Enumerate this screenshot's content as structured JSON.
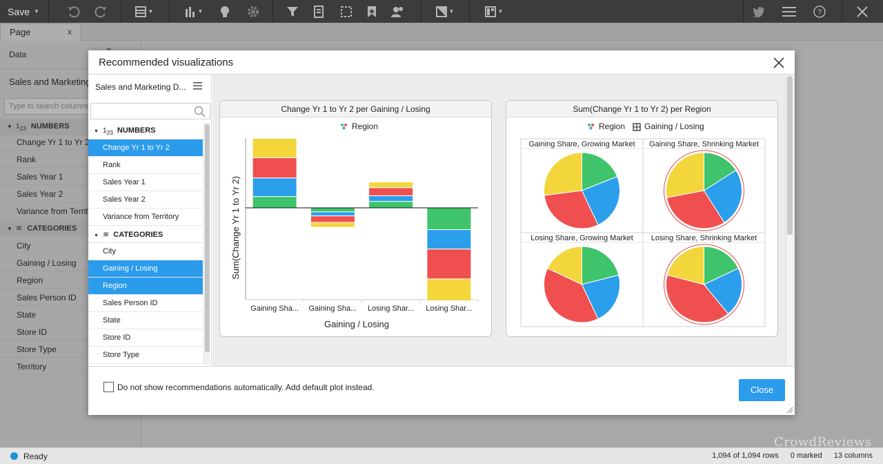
{
  "toolbar": {
    "save_label": "Save",
    "icons": [
      "undo-icon",
      "redo-icon",
      "table-icon",
      "bar-chart-icon",
      "bulb-icon",
      "gear-icon",
      "filter-icon",
      "data-table-icon",
      "marking-icon",
      "bookmark-icon",
      "collaboration-icon",
      "theme-icon",
      "layout-icon",
      "twitter-icon",
      "menu-icon",
      "help-icon",
      "close-icon"
    ]
  },
  "tabs": {
    "page_label": "Page",
    "close_label": "x"
  },
  "left_panel": {
    "data_label": "Data",
    "data_suffix": "T",
    "source_label": "Sales and Marketing D",
    "search_placeholder": "Type to search columns",
    "numbers_header": "NUMBERS",
    "numbers": [
      "Change Yr 1 to Yr 2",
      "Rank",
      "Sales Year 1",
      "Sales Year 2",
      "Variance from Territory"
    ],
    "categories_header": "CATEGORIES",
    "categories": [
      "City",
      "Gaining / Losing",
      "Region",
      "Sales Person ID",
      "State",
      "Store ID",
      "Store Type",
      "Territory"
    ]
  },
  "status": {
    "text": "Ready",
    "rows": "1,094 of 1,094 rows",
    "marked": "0 marked",
    "columns": "13 columns"
  },
  "watermark": "CrowdReviews",
  "dialog": {
    "title": "Recommended visualizations",
    "source_label": "Sales and Marketing D...",
    "numbers_header": "NUMBERS",
    "numbers": [
      {
        "label": "Change Yr 1 to Yr 2",
        "selected": true
      },
      {
        "label": "Rank",
        "selected": false
      },
      {
        "label": "Sales Year 1",
        "selected": false
      },
      {
        "label": "Sales Year 2",
        "selected": false
      },
      {
        "label": "Variance from Territory",
        "selected": false
      }
    ],
    "categories_header": "CATEGORIES",
    "categories": [
      {
        "label": "City",
        "selected": false
      },
      {
        "label": "Gaining / Losing",
        "selected": true
      },
      {
        "label": "Region",
        "selected": true
      },
      {
        "label": "Sales Person ID",
        "selected": false
      },
      {
        "label": "State",
        "selected": false
      },
      {
        "label": "Store ID",
        "selected": false
      },
      {
        "label": "Store Type",
        "selected": false
      }
    ],
    "checkbox_label": "Do not show recommendations automatically. Add default plot instead.",
    "close_button": "Close"
  },
  "colors": {
    "yellow": "#f3d53c",
    "red": "#ef4f4f",
    "blue": "#2b9eec",
    "green": "#3fc36b",
    "selection": "#2b9bec"
  },
  "chart_data": [
    {
      "type": "bar",
      "stacked": true,
      "title": "Change Yr 1 to Yr 2 per Gaining / Losing",
      "legend": "Region",
      "xlabel": "Gaining / Losing",
      "ylabel": "Sum(Change Yr 1 to Yr 2)",
      "categories": [
        "Gaining Sha...",
        "Gaining Sha...",
        "Losing Shar...",
        "Losing Shar..."
      ],
      "series": [
        {
          "color": "#3fc36b",
          "values": [
            14,
            -5,
            8,
            -27
          ]
        },
        {
          "color": "#2b9eec",
          "values": [
            23,
            -5,
            7,
            -24
          ]
        },
        {
          "color": "#ef4f4f",
          "values": [
            25,
            -8,
            10,
            -37
          ]
        },
        {
          "color": "#f3d53c",
          "values": [
            24,
            -6,
            7,
            -27
          ]
        }
      ]
    },
    {
      "type": "pie",
      "title": "Sum(Change Yr 1 to Yr 2) per Region",
      "legend": [
        "Region",
        "Gaining / Losing"
      ],
      "panels": [
        {
          "label": "Gaining Share, Growing Market",
          "slices": [
            0.19,
            0.24,
            0.3,
            0.27
          ]
        },
        {
          "label": "Gaining Share, Shrinking Market",
          "slices": [
            0.16,
            0.25,
            0.31,
            0.28
          ]
        },
        {
          "label": "Losing Share, Growing Market",
          "slices": [
            0.21,
            0.22,
            0.39,
            0.18
          ]
        },
        {
          "label": "Losing Share, Shrinking Market",
          "slices": [
            0.18,
            0.21,
            0.4,
            0.21
          ]
        }
      ],
      "slice_colors": [
        "#3fc36b",
        "#2b9eec",
        "#ef4f4f",
        "#f3d53c"
      ]
    }
  ]
}
